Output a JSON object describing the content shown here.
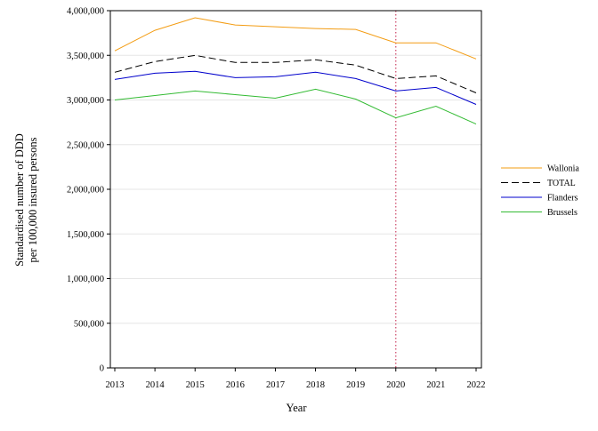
{
  "chart_data": {
    "type": "line",
    "title": "",
    "xlabel": "Year",
    "ylabel_line1": "Standardised number of DDD",
    "ylabel_line2": "per 100,000 insured persons",
    "x": [
      "2013",
      "2014",
      "2015",
      "2016",
      "2017",
      "2018",
      "2019",
      "2020",
      "2021",
      "2022"
    ],
    "ylim": [
      0,
      4000000
    ],
    "yticks": [
      0,
      500000,
      1000000,
      1500000,
      2000000,
      2500000,
      3000000,
      3500000,
      4000000
    ],
    "ytick_labels": [
      "0",
      "500,000",
      "1,000,000",
      "1,500,000",
      "2,000,000",
      "2,500,000",
      "3,000,000",
      "3,500,000",
      "4,000,000"
    ],
    "grid": "horizontal",
    "legend_position": "right",
    "reference_line": {
      "x": "2020",
      "color": "#cc4466",
      "style": "dotted"
    },
    "series": [
      {
        "name": "Wallonia",
        "color": "#f39c12",
        "dash": "solid",
        "values": [
          3550000,
          3780000,
          3920000,
          3840000,
          3820000,
          3800000,
          3790000,
          3640000,
          3640000,
          3460000
        ]
      },
      {
        "name": "TOTAL",
        "color": "#000000",
        "dash": "dashed",
        "values": [
          3310000,
          3430000,
          3500000,
          3420000,
          3420000,
          3450000,
          3390000,
          3240000,
          3270000,
          3080000
        ]
      },
      {
        "name": "Flanders",
        "color": "#0000cc",
        "dash": "solid",
        "values": [
          3230000,
          3300000,
          3320000,
          3250000,
          3260000,
          3310000,
          3240000,
          3100000,
          3140000,
          2950000
        ]
      },
      {
        "name": "Brussels",
        "color": "#33bb33",
        "dash": "solid",
        "values": [
          3000000,
          3050000,
          3100000,
          3060000,
          3020000,
          3120000,
          3010000,
          2800000,
          2930000,
          2730000
        ]
      }
    ]
  }
}
